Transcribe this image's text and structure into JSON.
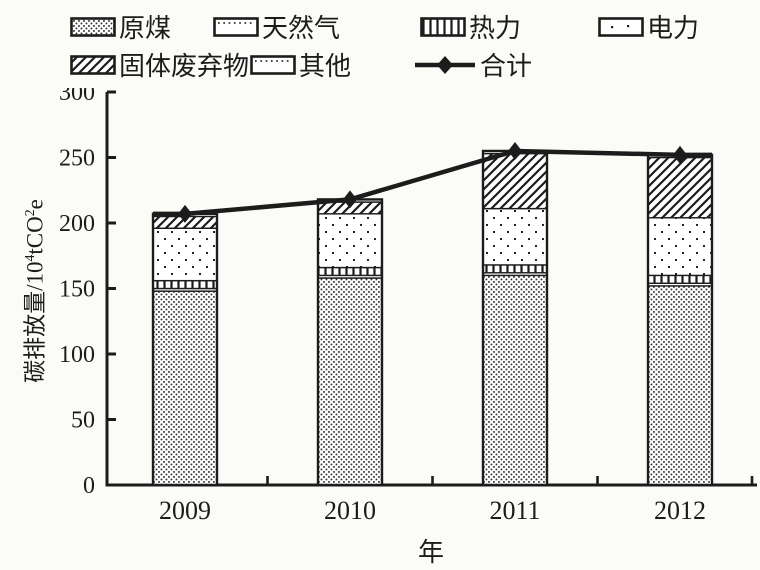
{
  "colors": {
    "ink": "#1c1c1c",
    "background": "#fbfbf8",
    "pattern_fill": "#ffffff"
  },
  "figure": {
    "xlabel": "年",
    "ylabel_parts": {
      "p1": "碳排放量/10",
      "s1": "4",
      "p2": "tCO",
      "s2": "2",
      "p3": "e"
    }
  },
  "legend": {
    "rows": [
      [
        {
          "label": "原煤",
          "key": "raw-coal",
          "swatch": "coal"
        },
        {
          "label": "天然气",
          "key": "natural-gas",
          "swatch": "sliver"
        },
        {
          "label": "热力",
          "key": "heat",
          "swatch": "heat"
        },
        {
          "label": "电力",
          "key": "electricity",
          "swatch": "elec"
        }
      ],
      [
        {
          "label": "固体废弃物",
          "key": "solid-waste",
          "swatch": "waste"
        },
        {
          "label": "其他",
          "key": "other",
          "swatch": "sliver"
        },
        {
          "label": "合计",
          "key": "total",
          "swatch": "line"
        }
      ]
    ]
  },
  "chart_data": {
    "type": "bar",
    "subtype": "stacked-bars-with-total-line",
    "categories": [
      "2009",
      "2010",
      "2011",
      "2012"
    ],
    "series": [
      {
        "name": "原煤",
        "key": "raw-coal",
        "pattern": "coal",
        "values": [
          148,
          158,
          160,
          152
        ]
      },
      {
        "name": "天然气",
        "key": "natural-gas",
        "pattern": "sliver",
        "values": [
          2,
          2,
          2,
          2
        ]
      },
      {
        "name": "热力",
        "key": "heat",
        "pattern": "heat",
        "values": [
          6,
          6,
          6,
          6
        ]
      },
      {
        "name": "电力",
        "key": "electricity",
        "pattern": "elec",
        "values": [
          40,
          41,
          43,
          44
        ]
      },
      {
        "name": "固体废弃物",
        "key": "solid-waste",
        "pattern": "waste",
        "values": [
          9,
          9,
          42,
          46
        ]
      },
      {
        "name": "其他",
        "key": "other",
        "pattern": "sliver",
        "values": [
          2,
          2,
          2,
          2
        ]
      }
    ],
    "line_series": {
      "name": "合计",
      "key": "total",
      "values": [
        207,
        218,
        255,
        252
      ]
    },
    "title": "",
    "xlabel": "年",
    "ylabel": "碳排放量/10⁴tCO²e",
    "ylim": [
      0,
      300
    ],
    "ytick_step": 50,
    "yticks": [
      0,
      50,
      100,
      150,
      200,
      250,
      300
    ],
    "grid": false,
    "legend_position": "top"
  }
}
